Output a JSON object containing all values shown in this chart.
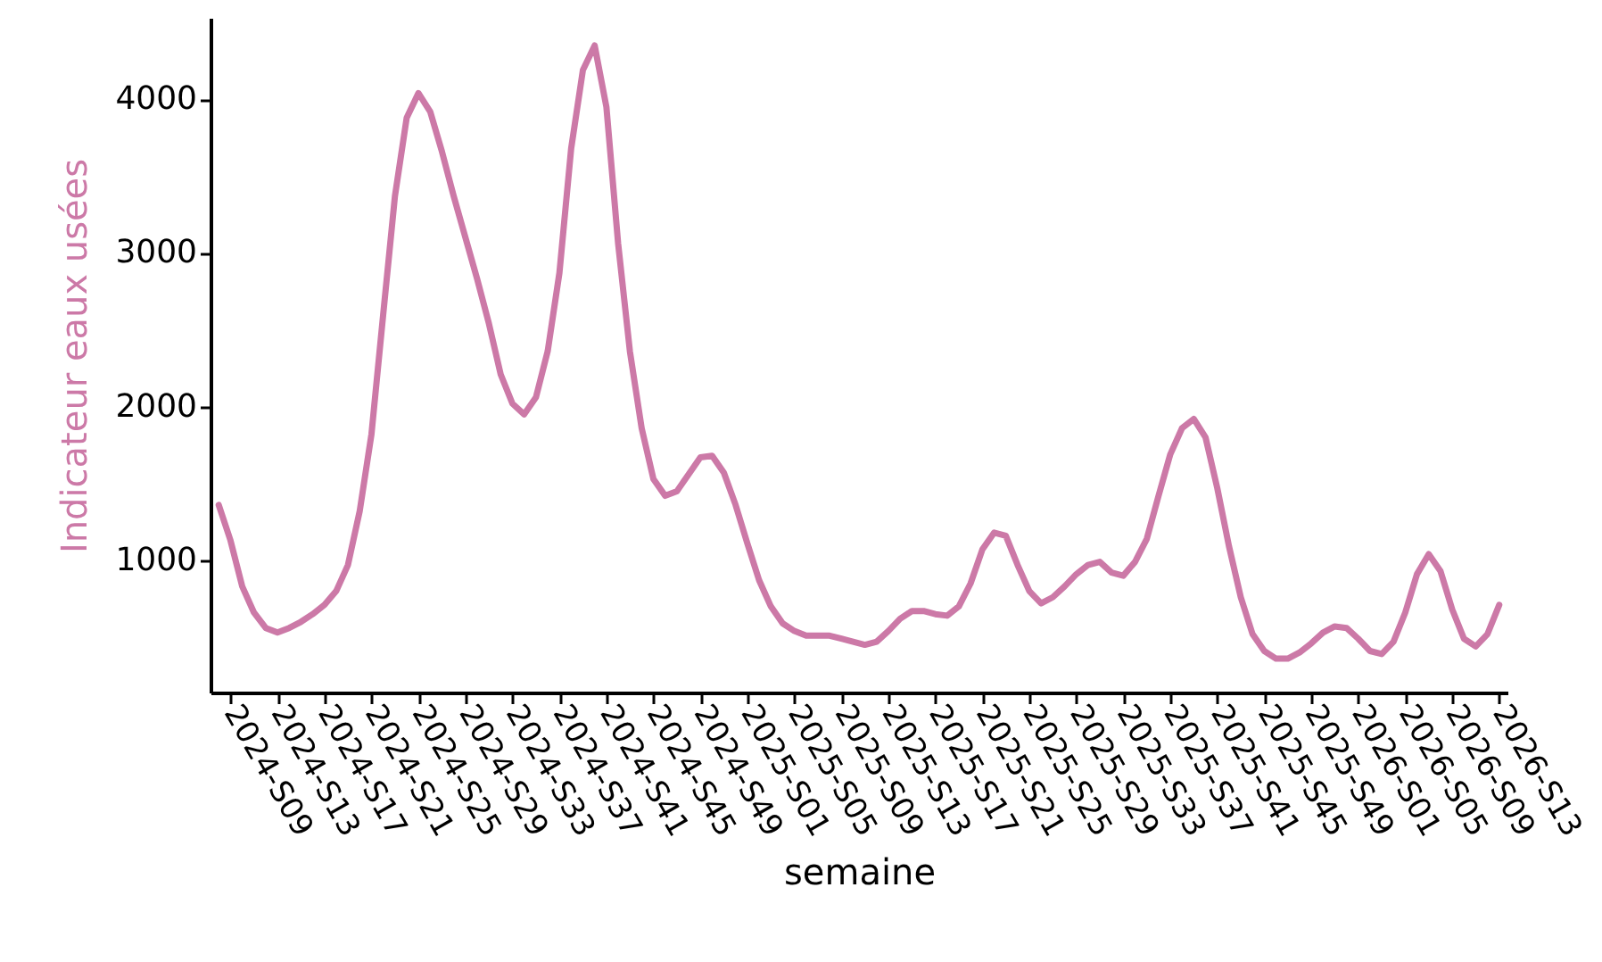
{
  "chart_data": {
    "type": "line",
    "xlabel": "semaine",
    "ylabel": "Indicateur eaux usées",
    "categories": [
      null,
      "2024-S09",
      null,
      null,
      null,
      "2024-S13",
      null,
      null,
      null,
      "2024-S17",
      null,
      null,
      null,
      "2024-S21",
      null,
      null,
      null,
      "2024-S25",
      null,
      null,
      null,
      "2024-S29",
      null,
      null,
      null,
      "2024-S33",
      null,
      null,
      null,
      "2024-S37",
      null,
      null,
      null,
      "2024-S41",
      null,
      null,
      null,
      "2024-S45",
      null,
      null,
      null,
      "2024-S49",
      null,
      null,
      null,
      "2025-S01",
      null,
      null,
      null,
      "2025-S05",
      null,
      null,
      null,
      "2025-S09",
      null,
      null,
      null,
      "2025-S13",
      null,
      null,
      null,
      "2025-S17",
      null,
      null,
      null,
      "2025-S21",
      null,
      null,
      null,
      "2025-S25",
      null,
      null,
      null,
      "2025-S29",
      null,
      null,
      null,
      "2025-S33",
      null,
      null,
      null,
      "2025-S37",
      null,
      null,
      null,
      "2025-S41",
      null,
      null,
      null,
      "2025-S45",
      null,
      null,
      null,
      "2025-S49",
      null,
      null,
      null,
      "2026-S01",
      null,
      null,
      null,
      "2026-S05",
      null,
      null,
      null,
      "2026-S09",
      null,
      null,
      null,
      "2026-S13"
    ],
    "series": [
      {
        "color": "#cc79a7",
        "values": [
          1360,
          1130,
          830,
          660,
          560,
          530,
          560,
          600,
          650,
          710,
          800,
          970,
          1320,
          1820,
          2600,
          3370,
          3880,
          4040,
          3920,
          3660,
          3370,
          3100,
          2830,
          2540,
          2210,
          2020,
          1950,
          2060,
          2360,
          2870,
          3680,
          4190,
          4350,
          3950,
          3060,
          2360,
          1860,
          1530,
          1420,
          1450,
          1560,
          1670,
          1680,
          1570,
          1360,
          1110,
          870,
          700,
          590,
          540,
          510,
          510,
          510,
          490,
          470,
          450,
          470,
          540,
          620,
          670,
          670,
          650,
          640,
          700,
          850,
          1070,
          1180,
          1160,
          970,
          800,
          720,
          760,
          830,
          910,
          970,
          990,
          920,
          900,
          990,
          1140,
          1420,
          1690,
          1860,
          1920,
          1800,
          1470,
          1090,
          760,
          520,
          410,
          360,
          360,
          400,
          460,
          530,
          570,
          560,
          490,
          410,
          390,
          470,
          660,
          910,
          1040,
          930,
          680,
          490,
          440,
          520,
          710
        ]
      }
    ],
    "ylim": [
      140,
      4530
    ],
    "yticks": [
      1000,
      2000,
      3000,
      4000
    ],
    "grid": false,
    "marker": "none",
    "line_style": "solid"
  }
}
